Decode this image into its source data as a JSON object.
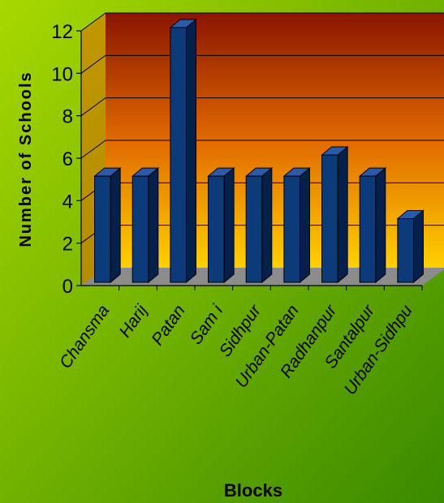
{
  "chart_data": {
    "type": "bar",
    "categories": [
      "Chansma",
      "Harij",
      "Patan",
      "Sami",
      "Sidhpur",
      "Urban-Patan",
      "Radhanpur",
      "Santalpur",
      "Urban-Sidhpur"
    ],
    "category_labels": [
      "Chansma",
      "Harij",
      "Patan",
      "Sam i",
      "Sidhpur",
      "Urban-Patan",
      "Radhanpur",
      "Santalpur",
      "Urban-Sidhpu"
    ],
    "values": [
      5,
      5,
      12,
      5,
      5,
      5,
      6,
      5,
      3
    ],
    "xlabel": "Blocks",
    "ylabel": "Number of Schools",
    "ylim": [
      0,
      12
    ],
    "yticks": [
      0,
      2,
      4,
      6,
      8,
      10,
      12
    ],
    "grid": true,
    "style": "3d-bar",
    "colors": {
      "background_light": "#a8d800",
      "background_dark": "#3a8a00",
      "wall_top": "#8a1500",
      "wall_mid": "#e06a00",
      "wall_bottom": "#ffd000",
      "floor": "#8c8c8c",
      "bar_front": "#0d3a78",
      "bar_side": "#05204a",
      "bar_top": "#2a5aa8"
    }
  }
}
